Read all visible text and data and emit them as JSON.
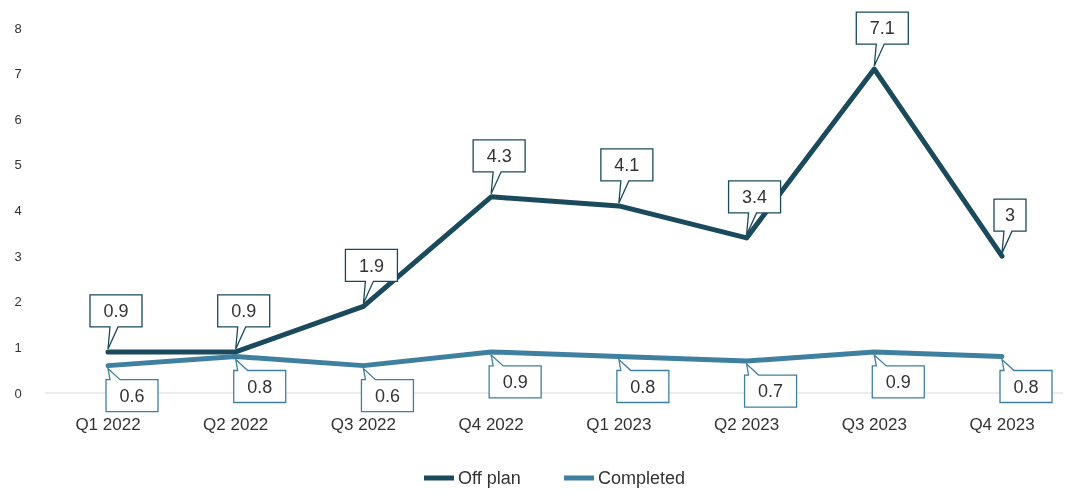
{
  "chart_data": {
    "type": "line",
    "categories": [
      "Q1 2022",
      "Q2 2022",
      "Q3 2022",
      "Q4 2022",
      "Q1 2023",
      "Q2 2023",
      "Q3 2023",
      "Q4 2023"
    ],
    "series": [
      {
        "name": "Off plan",
        "color": "#1b4a5c",
        "values": [
          0.9,
          0.9,
          1.9,
          4.3,
          4.1,
          3.4,
          7.1,
          3
        ]
      },
      {
        "name": "Completed",
        "color": "#3f7fa0",
        "values": [
          0.6,
          0.8,
          0.6,
          0.9,
          0.8,
          0.7,
          0.9,
          0.8
        ]
      }
    ],
    "ylim": [
      0,
      8
    ],
    "yticks": [
      0,
      1,
      2,
      3,
      4,
      5,
      6,
      7,
      8
    ],
    "grid": false,
    "legend": "bottom",
    "data_labels": true,
    "marker": "none",
    "line_style": "solid"
  }
}
